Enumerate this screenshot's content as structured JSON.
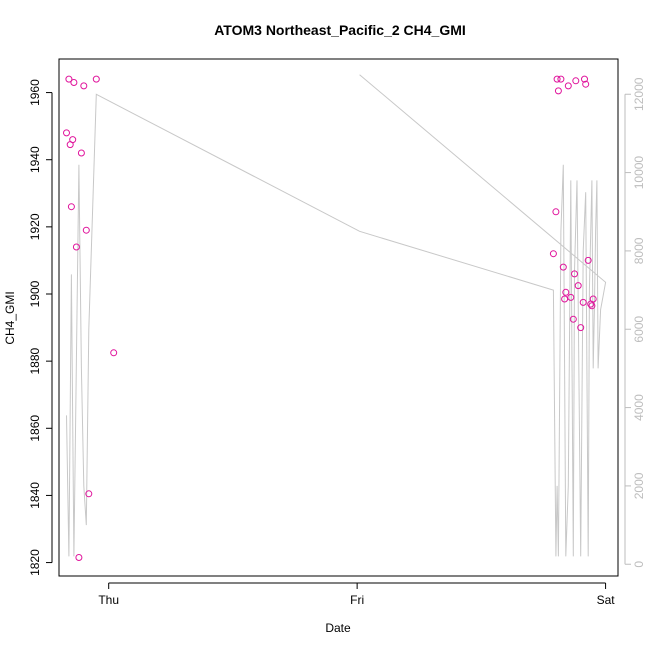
{
  "chart_data": {
    "type": "scatter",
    "title": "ATOM3 Northeast_Pacific_2 CH4_GMI",
    "xlabel": "Date",
    "ylabel": "CH4_GMI",
    "x_ticks": [
      "Thu",
      "Fri",
      "Sat"
    ],
    "y_ticks": [
      1820,
      1840,
      1860,
      1880,
      1900,
      1920,
      1940,
      1960
    ],
    "y2_ticks": [
      0,
      2000,
      4000,
      6000,
      8000,
      10000,
      12000
    ],
    "ylim": [
      1816,
      1970
    ],
    "y2lim": [
      -300,
      12900
    ],
    "xlim": [
      -0.2,
      2.05
    ],
    "grid": false,
    "colors": {
      "points": "#e0149c",
      "altitude": "#c8c8c8",
      "right_axis": "#bdbdbd"
    },
    "series": [
      {
        "marker": "circle",
        "x": [
          -0.17,
          -0.16,
          -0.155,
          -0.15,
          -0.145,
          -0.14,
          -0.13,
          -0.12,
          -0.11,
          -0.1,
          -0.09,
          -0.08,
          -0.05,
          0.02,
          1.79,
          1.8,
          1.805,
          1.81,
          1.82,
          1.83,
          1.835,
          1.84,
          1.85,
          1.86,
          1.87,
          1.875,
          1.88,
          1.89,
          1.9,
          1.91,
          1.915,
          1.92,
          1.93,
          1.94,
          1.945,
          1.95
        ],
        "y": [
          1948,
          1964,
          1944.5,
          1926,
          1946,
          1963,
          1914,
          1821.5,
          1942,
          1962,
          1919,
          1840.5,
          1964,
          1882.5,
          1912,
          1924.5,
          1964,
          1960.5,
          1964,
          1908,
          1898.5,
          1900.5,
          1962,
          1899,
          1892.5,
          1906,
          1963.5,
          1902.5,
          1890,
          1897.5,
          1964,
          1962.5,
          1910,
          1897,
          1896.5,
          1898.5
        ]
      },
      {
        "line": true,
        "x": [
          -0.17,
          -0.16,
          -0.15,
          -0.14,
          -0.12,
          -0.11,
          -0.1,
          -0.09,
          -0.08,
          -0.05,
          1.01,
          1.79,
          1.8,
          1.805,
          1.81,
          1.82,
          1.83,
          1.84,
          1.85,
          1.86,
          1.87,
          1.875,
          1.885,
          1.9,
          1.91,
          1.92,
          1.93,
          1.935,
          1.945,
          1.95,
          1.955,
          1.96,
          1.965,
          1.97,
          1.98,
          2.0,
          1.01
        ],
        "y": [
          3800,
          200,
          7400,
          200,
          10200,
          5000,
          2000,
          1000,
          6000,
          12000,
          8500,
          7000,
          200,
          2000,
          200,
          8500,
          10200,
          200,
          2000,
          9800,
          200,
          7500,
          9800,
          200,
          8000,
          9500,
          200,
          7000,
          9800,
          5000,
          6500,
          8500,
          9800,
          5000,
          6500,
          7200,
          12500
        ]
      }
    ]
  }
}
